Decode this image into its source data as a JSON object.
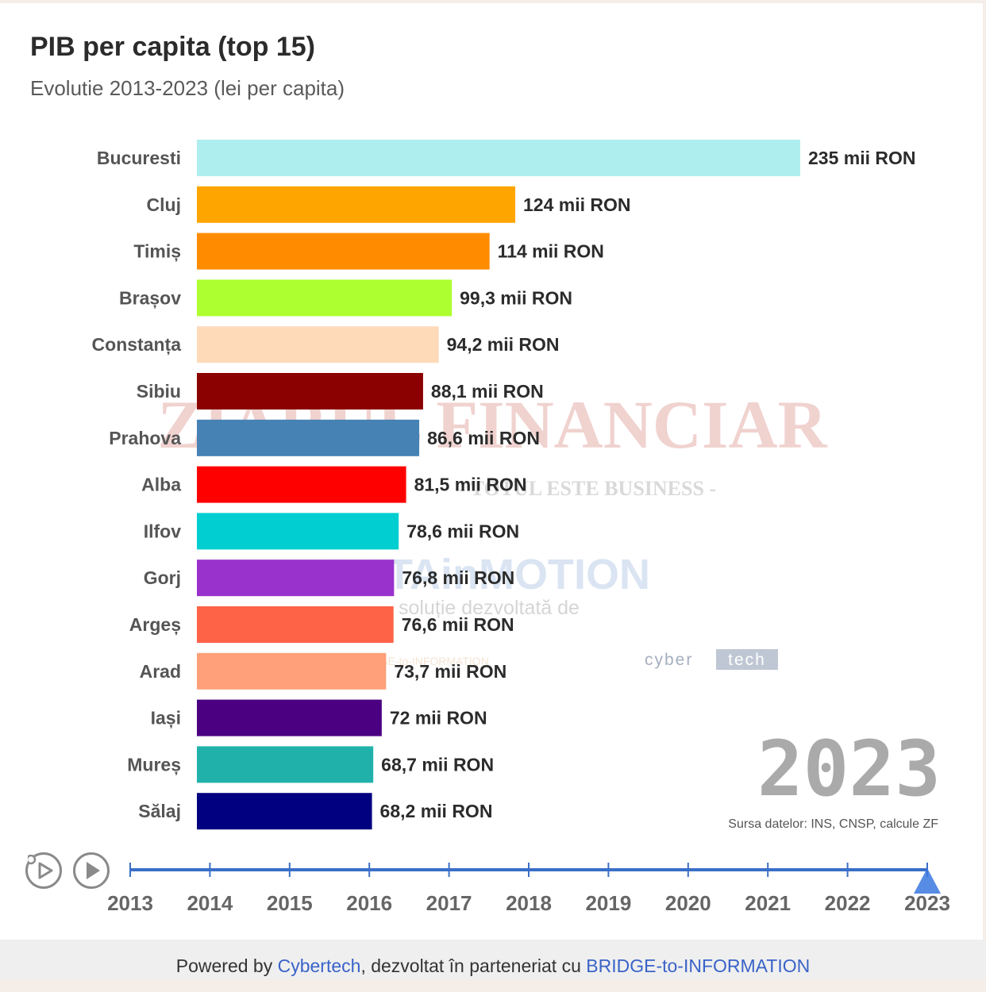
{
  "header": {
    "title": "PIB per capita (top 15)",
    "subtitle": "Evolutie 2013-2023 (lei per capita)"
  },
  "chart_data": {
    "type": "bar",
    "orientation": "horizontal",
    "year": "2023",
    "categories": [
      "Bucuresti",
      "Cluj",
      "Timiș",
      "Brașov",
      "Constanța",
      "Sibiu",
      "Prahova",
      "Alba",
      "Ilfov",
      "Gorj",
      "Argeș",
      "Arad",
      "Iași",
      "Mureș",
      "Sălaj"
    ],
    "values": [
      235,
      124,
      114,
      99.3,
      94.2,
      88.1,
      86.6,
      81.5,
      78.6,
      76.8,
      76.6,
      73.7,
      72,
      68.7,
      68.2
    ],
    "value_labels": [
      "235 mii RON",
      "124 mii RON",
      "114 mii RON",
      "99,3 mii RON",
      "94,2 mii RON",
      "88,1 mii RON",
      "86,6 mii RON",
      "81,5 mii RON",
      "78,6 mii RON",
      "76,8 mii RON",
      "76,6 mii RON",
      "73,7 mii RON",
      "72 mii RON",
      "68,7 mii RON",
      "68,2 mii RON"
    ],
    "colors": [
      "#afeeee",
      "#ffa500",
      "#ff8c00",
      "#adff2f",
      "#ffdab9",
      "#8b0000",
      "#4682b4",
      "#ff0000",
      "#00ced1",
      "#9932cc",
      "#ff6347",
      "#ffa07a",
      "#4b0082",
      "#20b2aa",
      "#000080"
    ],
    "xlim": [
      0,
      235
    ],
    "grid": false,
    "source": "Sursa datelor: INS, CNSP, calcule ZF"
  },
  "watermarks": {
    "publisher": "ZIARUL FINANCIAR",
    "tagline": "- TOTUL ESTE BUSINESS -",
    "brand": "DATAinMOTION",
    "brand_sub": "soluție dezvoltată de",
    "partner": "BRIDGE-to-INFORMATION",
    "cyber": "cyber",
    "tech": "tech"
  },
  "timeline": {
    "years": [
      "2013",
      "2014",
      "2015",
      "2016",
      "2017",
      "2018",
      "2019",
      "2020",
      "2021",
      "2022",
      "2023"
    ],
    "current": "2023",
    "icons": {
      "replay": "replay-icon",
      "play": "play-icon"
    }
  },
  "footer": {
    "prefix": "Powered by ",
    "cybertech": "Cybertech",
    "middle": ", dezvoltat în parteneriat cu ",
    "partner": "BRIDGE-to-INFORMATION"
  },
  "theme": {
    "timeline_color": "#3a6fc8",
    "link_color": "#3a63c8"
  }
}
